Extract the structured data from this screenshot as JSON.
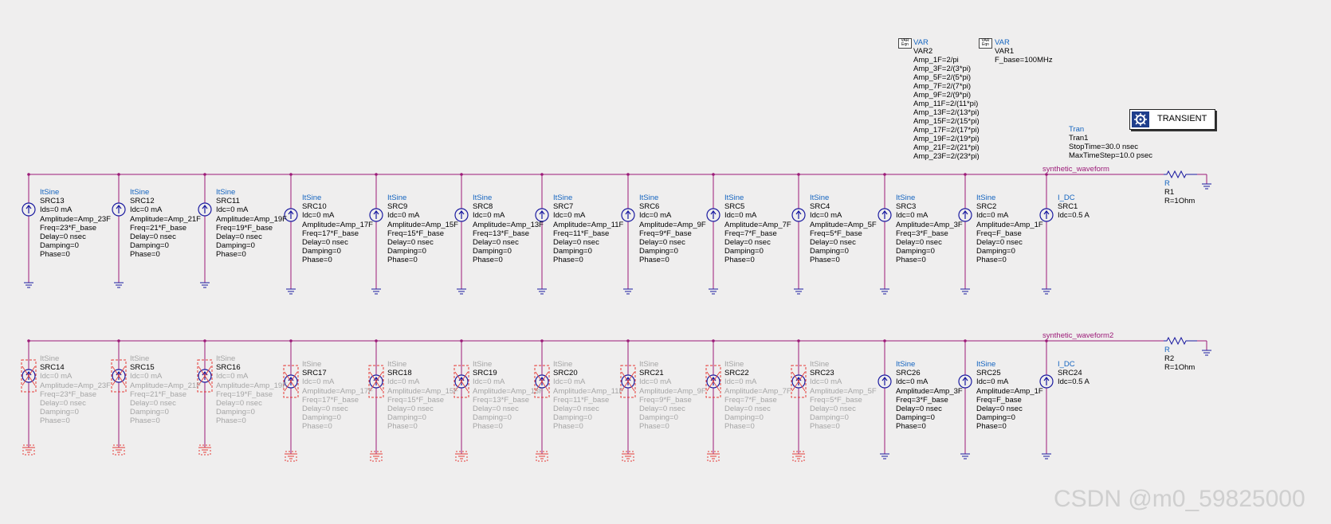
{
  "nets": {
    "top": "synthetic_waveform",
    "bottom": "synthetic_waveform2"
  },
  "row1": [
    {
      "type": "ItSine",
      "inst": "SRC13",
      "params": [
        "Ids=0 mA",
        "Amplitude=Amp_23F",
        "Freq=23*F_base",
        "Delay=0 nsec",
        "Damping=0",
        "Phase=0"
      ],
      "disabled": false
    },
    {
      "type": "ItSine",
      "inst": "SRC12",
      "params": [
        "Idc=0 mA",
        "Amplitude=Amp_21F",
        "Freq=21*F_base",
        "Delay=0 nsec",
        "Damping=0",
        "Phase=0"
      ],
      "disabled": false
    },
    {
      "type": "ItSine",
      "inst": "SRC11",
      "params": [
        "Idc=0 mA",
        "Amplitude=Amp_19F",
        "Freq=19*F_base",
        "Delay=0 nsec",
        "Damping=0",
        "Phase=0"
      ],
      "disabled": false
    },
    {
      "type": "ItSine",
      "inst": "SRC10",
      "params": [
        "Idc=0 mA",
        "Amplitude=Amp_17F",
        "Freq=17*F_base",
        "Delay=0 nsec",
        "Damping=0",
        "Phase=0"
      ],
      "disabled": false
    },
    {
      "type": "ItSine",
      "inst": "SRC9",
      "params": [
        "Idc=0 mA",
        "Amplitude=Amp_15F",
        "Freq=15*F_base",
        "Delay=0 nsec",
        "Damping=0",
        "Phase=0"
      ],
      "disabled": false
    },
    {
      "type": "ItSine",
      "inst": "SRC8",
      "params": [
        "Idc=0 mA",
        "Amplitude=Amp_13F",
        "Freq=13*F_base",
        "Delay=0 nsec",
        "Damping=0",
        "Phase=0"
      ],
      "disabled": false
    },
    {
      "type": "ItSine",
      "inst": "SRC7",
      "params": [
        "Idc=0 mA",
        "Amplitude=Amp_11F",
        "Freq=11*F_base",
        "Delay=0 nsec",
        "Damping=0",
        "Phase=0"
      ],
      "disabled": false
    },
    {
      "type": "ItSine",
      "inst": "SRC6",
      "params": [
        "Idc=0 mA",
        "Amplitude=Amp_9F",
        "Freq=9*F_base",
        "Delay=0 nsec",
        "Damping=0",
        "Phase=0"
      ],
      "disabled": false
    },
    {
      "type": "ItSine",
      "inst": "SRC5",
      "params": [
        "Idc=0 mA",
        "Amplitude=Amp_7F",
        "Freq=7*F_base",
        "Delay=0 nsec",
        "Damping=0",
        "Phase=0"
      ],
      "disabled": false
    },
    {
      "type": "ItSine",
      "inst": "SRC4",
      "params": [
        "Idc=0 mA",
        "Amplitude=Amp_5F",
        "Freq=5*F_base",
        "Delay=0 nsec",
        "Damping=0",
        "Phase=0"
      ],
      "disabled": false
    },
    {
      "type": "ItSine",
      "inst": "SRC3",
      "params": [
        "Idc=0 mA",
        "Amplitude=Amp_3F",
        "Freq=3*F_base",
        "Delay=0 nsec",
        "Damping=0",
        "Phase=0"
      ],
      "disabled": false
    },
    {
      "type": "ItSine",
      "inst": "SRC2",
      "params": [
        "Idc=0 mA",
        "Amplitude=Amp_1F",
        "Freq=F_base",
        "Delay=0 nsec",
        "Damping=0",
        "Phase=0"
      ],
      "disabled": false
    },
    {
      "type": "I_DC",
      "inst": "SRC1",
      "params": [
        "Idc=0.5 A"
      ],
      "disabled": false
    }
  ],
  "row2": [
    {
      "type": "ItSine",
      "inst": "SRC14",
      "params": [
        "Idc=0 mA",
        "Amplitude=Amp_23F",
        "Freq=23*F_base",
        "Delay=0 nsec",
        "Damping=0",
        "Phase=0"
      ],
      "disabled": true
    },
    {
      "type": "ItSine",
      "inst": "SRC15",
      "params": [
        "Idc=0 mA",
        "Amplitude=Amp_21F",
        "Freq=21*F_base",
        "Delay=0 nsec",
        "Damping=0",
        "Phase=0"
      ],
      "disabled": true
    },
    {
      "type": "ItSine",
      "inst": "SRC16",
      "params": [
        "Idc=0 mA",
        "Amplitude=Amp_19F",
        "Freq=19*F_base",
        "Delay=0 nsec",
        "Damping=0",
        "Phase=0"
      ],
      "disabled": true
    },
    {
      "type": "ItSine",
      "inst": "SRC17",
      "params": [
        "Idc=0 mA",
        "Amplitude=Amp_17F",
        "Freq=17*F_base",
        "Delay=0 nsec",
        "Damping=0",
        "Phase=0"
      ],
      "disabled": true
    },
    {
      "type": "ItSine",
      "inst": "SRC18",
      "params": [
        "Idc=0 mA",
        "Amplitude=Amp_15F",
        "Freq=15*F_base",
        "Delay=0 nsec",
        "Damping=0",
        "Phase=0"
      ],
      "disabled": true
    },
    {
      "type": "ItSine",
      "inst": "SRC19",
      "params": [
        "Idc=0 mA",
        "Amplitude=Amp_13F",
        "Freq=13*F_base",
        "Delay=0 nsec",
        "Damping=0",
        "Phase=0"
      ],
      "disabled": true
    },
    {
      "type": "ItSine",
      "inst": "SRC20",
      "params": [
        "Idc=0 mA",
        "Amplitude=Amp_11F",
        "Freq=11*F_base",
        "Delay=0 nsec",
        "Damping=0",
        "Phase=0"
      ],
      "disabled": true
    },
    {
      "type": "ItSine",
      "inst": "SRC21",
      "params": [
        "Idc=0 mA",
        "Amplitude=Amp_9F",
        "Freq=9*F_base",
        "Delay=0 nsec",
        "Damping=0",
        "Phase=0"
      ],
      "disabled": true
    },
    {
      "type": "ItSine",
      "inst": "SRC22",
      "params": [
        "Idc=0 mA",
        "Amplitude=Amp_7F",
        "Freq=7*F_base",
        "Delay=0 nsec",
        "Damping=0",
        "Phase=0"
      ],
      "disabled": true
    },
    {
      "type": "ItSine",
      "inst": "SRC23",
      "params": [
        "Idc=0 mA",
        "Amplitude=Amp_5F",
        "Freq=5*F_base",
        "Delay=0 nsec",
        "Damping=0",
        "Phase=0"
      ],
      "disabled": true
    },
    {
      "type": "ItSine",
      "inst": "SRC26",
      "params": [
        "Idc=0 mA",
        "Amplitude=Amp_3F",
        "Freq=3*F_base",
        "Delay=0 nsec",
        "Damping=0",
        "Phase=0"
      ],
      "disabled": false
    },
    {
      "type": "ItSine",
      "inst": "SRC25",
      "params": [
        "Idc=0 mA",
        "Amplitude=Amp_1F",
        "Freq=F_base",
        "Delay=0 nsec",
        "Damping=0",
        "Phase=0"
      ],
      "disabled": false
    },
    {
      "type": "I_DC",
      "inst": "SRC24",
      "params": [
        "Idc=0.5 A"
      ],
      "disabled": false
    }
  ],
  "var2": {
    "icon_top": "VAR",
    "icon_bottom": "Eqn",
    "type": "VAR",
    "inst": "VAR2",
    "lines": [
      "Amp_1F=2/pi",
      "Amp_3F=2/(3*pi)",
      "Amp_5F=2/(5*pi)",
      "Amp_7F=2/(7*pi)",
      "Amp_9F=2/(9*pi)",
      "Amp_11F=2/(11*pi)",
      "Amp_13F=2/(13*pi)",
      "Amp_15F=2/(15*pi)",
      "Amp_17F=2/(17*pi)",
      "Amp_19F=2/(19*pi)",
      "Amp_21F=2/(21*pi)",
      "Amp_23F=2/(23*pi)"
    ]
  },
  "var1": {
    "icon_top": "VAR",
    "icon_bottom": "Eqn",
    "type": "VAR",
    "inst": "VAR1",
    "lines": [
      "F_base=100MHz"
    ]
  },
  "tran": {
    "box_label": "TRANSIENT",
    "type": "Tran",
    "inst": "Tran1",
    "lines": [
      "StopTime=30.0 nsec",
      "MaxTimeStep=10.0 psec"
    ]
  },
  "r1": {
    "type": "R",
    "inst": "R1",
    "value": "R=1Ohm"
  },
  "r2": {
    "type": "R",
    "inst": "R2",
    "value": "R=1Ohm"
  },
  "watermark": "CSDN @m0_59825000",
  "colors": {
    "wire": "#9c1a78",
    "symbol": "#1a1aa0",
    "disabled": "#e53935",
    "label": "#1565c0",
    "background": "#efeeee"
  }
}
